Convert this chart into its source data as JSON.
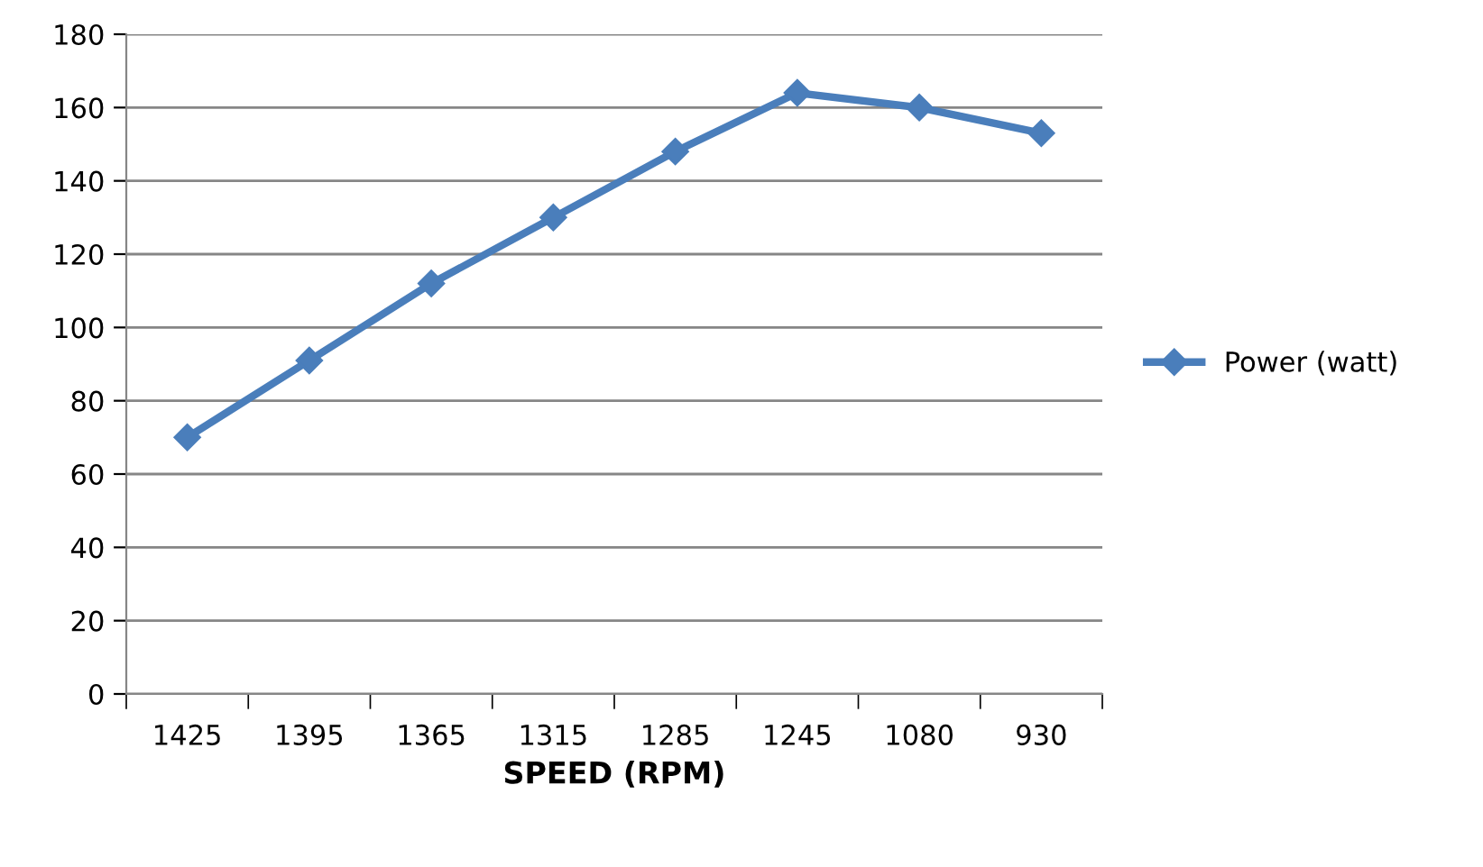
{
  "chart_data": {
    "type": "line",
    "xlabel": "SPEED (RPM)",
    "categories": [
      "1425",
      "1395",
      "1365",
      "1315",
      "1285",
      "1245",
      "1080",
      "930"
    ],
    "series": [
      {
        "name": "Power (watt)",
        "color": "#4a7ebb",
        "values": [
          70,
          91,
          112,
          130,
          148,
          164,
          160,
          153
        ]
      }
    ],
    "ylim": [
      0,
      180
    ],
    "yticks": [
      0,
      20,
      40,
      60,
      80,
      100,
      120,
      140,
      160,
      180
    ],
    "grid": "y",
    "legend": "right",
    "marker": "diamond",
    "line_style": "solid"
  }
}
